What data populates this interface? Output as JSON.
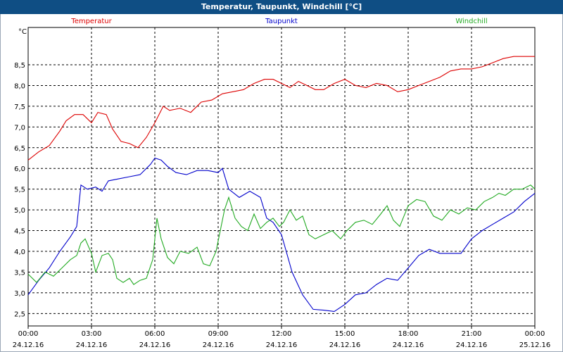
{
  "window": {
    "title": "Temperatur, Taupunkt, Windchill [°C]"
  },
  "chart_data": {
    "type": "line",
    "title": "Temperatur, Taupunkt, Windchill [°C]",
    "ylabel": "°C",
    "ylim": [
      2.2,
      9.4
    ],
    "xlim": [
      0,
      24
    ],
    "grid": true,
    "legend_placement": "top",
    "y_ticks": [
      {
        "v": 2.5,
        "label": "2,5"
      },
      {
        "v": 3.0,
        "label": "3,0"
      },
      {
        "v": 3.5,
        "label": "3,5"
      },
      {
        "v": 4.0,
        "label": "4,0"
      },
      {
        "v": 4.5,
        "label": "4,5"
      },
      {
        "v": 5.0,
        "label": "5,0"
      },
      {
        "v": 5.5,
        "label": "5,5"
      },
      {
        "v": 6.0,
        "label": "6,0"
      },
      {
        "v": 6.5,
        "label": "6,5"
      },
      {
        "v": 7.0,
        "label": "7,0"
      },
      {
        "v": 7.5,
        "label": "7,5"
      },
      {
        "v": 8.0,
        "label": "8,0"
      },
      {
        "v": 8.5,
        "label": "8,5"
      }
    ],
    "x_ticks": [
      {
        "h": 0,
        "time": "00:00",
        "date": "24.12.16"
      },
      {
        "h": 3,
        "time": "03:00",
        "date": "24.12.16"
      },
      {
        "h": 6,
        "time": "06:00",
        "date": "24.12.16"
      },
      {
        "h": 9,
        "time": "09:00",
        "date": "24.12.16"
      },
      {
        "h": 12,
        "time": "12:00",
        "date": "24.12.16"
      },
      {
        "h": 15,
        "time": "15:00",
        "date": "24.12.16"
      },
      {
        "h": 18,
        "time": "18:00",
        "date": "24.12.16"
      },
      {
        "h": 21,
        "time": "21:00",
        "date": "24.12.16"
      },
      {
        "h": 24,
        "time": "00:00",
        "date": "25.12.16"
      }
    ],
    "series": [
      {
        "name": "Temperatur",
        "color": "#dd0000",
        "legend_x": 0.125,
        "points": [
          [
            0,
            6.2
          ],
          [
            0.5,
            6.4
          ],
          [
            1,
            6.55
          ],
          [
            1.5,
            6.9
          ],
          [
            1.8,
            7.15
          ],
          [
            2.2,
            7.3
          ],
          [
            2.6,
            7.3
          ],
          [
            3.0,
            7.1
          ],
          [
            3.3,
            7.35
          ],
          [
            3.7,
            7.3
          ],
          [
            4.0,
            6.95
          ],
          [
            4.4,
            6.65
          ],
          [
            4.8,
            6.6
          ],
          [
            5.2,
            6.5
          ],
          [
            5.6,
            6.75
          ],
          [
            6.0,
            7.1
          ],
          [
            6.4,
            7.5
          ],
          [
            6.7,
            7.4
          ],
          [
            7.2,
            7.45
          ],
          [
            7.7,
            7.35
          ],
          [
            8.2,
            7.6
          ],
          [
            8.7,
            7.65
          ],
          [
            9.2,
            7.8
          ],
          [
            9.7,
            7.85
          ],
          [
            10.2,
            7.9
          ],
          [
            10.7,
            8.05
          ],
          [
            11.2,
            8.15
          ],
          [
            11.6,
            8.15
          ],
          [
            12.0,
            8.05
          ],
          [
            12.4,
            7.95
          ],
          [
            12.8,
            8.1
          ],
          [
            13.2,
            8.0
          ],
          [
            13.6,
            7.9
          ],
          [
            14.0,
            7.9
          ],
          [
            14.5,
            8.05
          ],
          [
            15.0,
            8.15
          ],
          [
            15.5,
            8.0
          ],
          [
            16.0,
            7.95
          ],
          [
            16.5,
            8.05
          ],
          [
            17.0,
            8.0
          ],
          [
            17.5,
            7.85
          ],
          [
            18.0,
            7.9
          ],
          [
            18.5,
            8.0
          ],
          [
            19.0,
            8.1
          ],
          [
            19.5,
            8.2
          ],
          [
            20.0,
            8.35
          ],
          [
            20.5,
            8.4
          ],
          [
            21.0,
            8.4
          ],
          [
            21.5,
            8.45
          ],
          [
            22.0,
            8.55
          ],
          [
            22.5,
            8.65
          ],
          [
            23.0,
            8.7
          ],
          [
            23.5,
            8.7
          ],
          [
            24.0,
            8.7
          ]
        ]
      },
      {
        "name": "Taupunkt",
        "color": "#0000cc",
        "legend_x": 0.5,
        "points": [
          [
            0,
            2.95
          ],
          [
            0.5,
            3.3
          ],
          [
            1.0,
            3.6
          ],
          [
            1.5,
            4.0
          ],
          [
            2.0,
            4.35
          ],
          [
            2.3,
            4.6
          ],
          [
            2.5,
            5.6
          ],
          [
            2.8,
            5.5
          ],
          [
            3.2,
            5.55
          ],
          [
            3.5,
            5.45
          ],
          [
            3.8,
            5.7
          ],
          [
            4.3,
            5.75
          ],
          [
            4.8,
            5.8
          ],
          [
            5.3,
            5.85
          ],
          [
            5.8,
            6.1
          ],
          [
            6.0,
            6.25
          ],
          [
            6.3,
            6.2
          ],
          [
            6.6,
            6.05
          ],
          [
            7.0,
            5.9
          ],
          [
            7.5,
            5.85
          ],
          [
            8.0,
            5.95
          ],
          [
            8.5,
            5.95
          ],
          [
            9.0,
            5.9
          ],
          [
            9.2,
            6.0
          ],
          [
            9.5,
            5.5
          ],
          [
            10.0,
            5.3
          ],
          [
            10.5,
            5.45
          ],
          [
            11.0,
            5.3
          ],
          [
            11.3,
            4.8
          ],
          [
            11.6,
            4.7
          ],
          [
            12.0,
            4.4
          ],
          [
            12.5,
            3.5
          ],
          [
            13.0,
            2.95
          ],
          [
            13.5,
            2.6
          ],
          [
            14.0,
            2.58
          ],
          [
            14.5,
            2.55
          ],
          [
            15.0,
            2.72
          ],
          [
            15.5,
            2.95
          ],
          [
            16.0,
            3.0
          ],
          [
            16.5,
            3.2
          ],
          [
            17.0,
            3.35
          ],
          [
            17.5,
            3.3
          ],
          [
            18.0,
            3.6
          ],
          [
            18.5,
            3.9
          ],
          [
            19.0,
            4.05
          ],
          [
            19.5,
            3.95
          ],
          [
            20.0,
            3.95
          ],
          [
            20.5,
            3.95
          ],
          [
            21.0,
            4.3
          ],
          [
            21.5,
            4.5
          ],
          [
            22.0,
            4.65
          ],
          [
            22.5,
            4.8
          ],
          [
            23.0,
            4.95
          ],
          [
            23.5,
            5.2
          ],
          [
            24.0,
            5.4
          ]
        ]
      },
      {
        "name": "Windchill",
        "color": "#22aa22",
        "legend_x": 0.875,
        "points": [
          [
            0,
            3.45
          ],
          [
            0.4,
            3.25
          ],
          [
            0.8,
            3.5
          ],
          [
            1.2,
            3.4
          ],
          [
            1.6,
            3.6
          ],
          [
            2.0,
            3.8
          ],
          [
            2.3,
            3.9
          ],
          [
            2.5,
            4.2
          ],
          [
            2.7,
            4.3
          ],
          [
            3.0,
            3.95
          ],
          [
            3.2,
            3.5
          ],
          [
            3.5,
            3.9
          ],
          [
            3.8,
            3.95
          ],
          [
            4.0,
            3.8
          ],
          [
            4.2,
            3.35
          ],
          [
            4.5,
            3.25
          ],
          [
            4.8,
            3.35
          ],
          [
            5.0,
            3.2
          ],
          [
            5.3,
            3.3
          ],
          [
            5.6,
            3.35
          ],
          [
            5.9,
            3.8
          ],
          [
            6.1,
            4.8
          ],
          [
            6.3,
            4.3
          ],
          [
            6.6,
            3.85
          ],
          [
            6.9,
            3.7
          ],
          [
            7.2,
            4.0
          ],
          [
            7.6,
            3.95
          ],
          [
            8.0,
            4.1
          ],
          [
            8.3,
            3.7
          ],
          [
            8.6,
            3.65
          ],
          [
            8.9,
            4.0
          ],
          [
            9.1,
            4.5
          ],
          [
            9.3,
            5.0
          ],
          [
            9.5,
            5.3
          ],
          [
            9.8,
            4.8
          ],
          [
            10.1,
            4.6
          ],
          [
            10.4,
            4.5
          ],
          [
            10.7,
            4.9
          ],
          [
            11.0,
            4.55
          ],
          [
            11.3,
            4.7
          ],
          [
            11.6,
            4.8
          ],
          [
            11.9,
            4.6
          ],
          [
            12.1,
            4.7
          ],
          [
            12.4,
            5.0
          ],
          [
            12.7,
            4.75
          ],
          [
            13.0,
            4.85
          ],
          [
            13.3,
            4.4
          ],
          [
            13.6,
            4.3
          ],
          [
            14.0,
            4.4
          ],
          [
            14.4,
            4.5
          ],
          [
            14.8,
            4.3
          ],
          [
            15.1,
            4.5
          ],
          [
            15.5,
            4.7
          ],
          [
            15.9,
            4.75
          ],
          [
            16.3,
            4.65
          ],
          [
            16.7,
            4.9
          ],
          [
            17.0,
            5.1
          ],
          [
            17.3,
            4.75
          ],
          [
            17.6,
            4.6
          ],
          [
            18.0,
            5.1
          ],
          [
            18.4,
            5.25
          ],
          [
            18.8,
            5.2
          ],
          [
            19.2,
            4.85
          ],
          [
            19.6,
            4.75
          ],
          [
            20.0,
            5.0
          ],
          [
            20.4,
            4.9
          ],
          [
            20.8,
            5.05
          ],
          [
            21.2,
            5.0
          ],
          [
            21.6,
            5.2
          ],
          [
            22.0,
            5.3
          ],
          [
            22.3,
            5.4
          ],
          [
            22.6,
            5.35
          ],
          [
            23.0,
            5.5
          ],
          [
            23.4,
            5.5
          ],
          [
            23.8,
            5.6
          ],
          [
            24.0,
            5.5
          ]
        ]
      }
    ]
  }
}
